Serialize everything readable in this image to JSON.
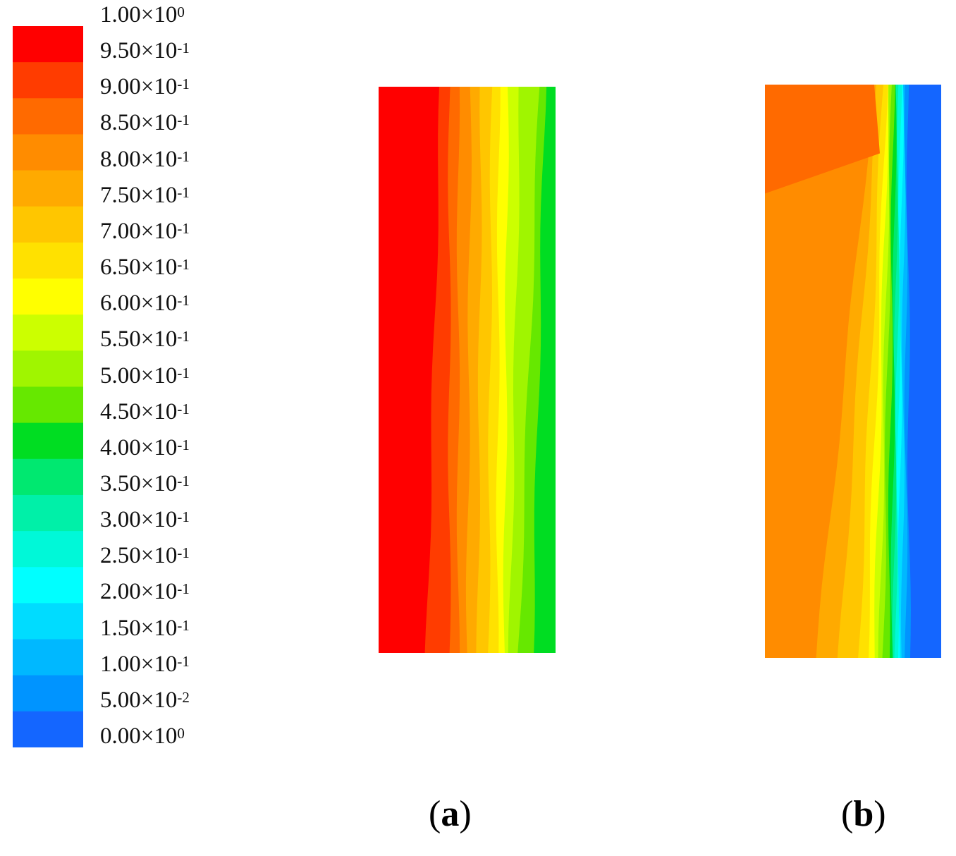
{
  "chart_data": {
    "type": "heatmap",
    "colorbar": {
      "levels": [
        {
          "value": 1.0,
          "label": "1.00×10",
          "exp": "0",
          "color": "#ff0000"
        },
        {
          "value": 0.95,
          "label": "9.50×10",
          "exp": "-1",
          "color": "#ff3c00"
        },
        {
          "value": 0.9,
          "label": "9.00×10",
          "exp": "-1",
          "color": "#ff6a00"
        },
        {
          "value": 0.85,
          "label": "8.50×10",
          "exp": "-1",
          "color": "#ff8c00"
        },
        {
          "value": 0.8,
          "label": "8.00×10",
          "exp": "-1",
          "color": "#ffaa00"
        },
        {
          "value": 0.75,
          "label": "7.50×10",
          "exp": "-1",
          "color": "#ffc600"
        },
        {
          "value": 0.7,
          "label": "7.00×10",
          "exp": "-1",
          "color": "#ffe100"
        },
        {
          "value": 0.65,
          "label": "6.50×10",
          "exp": "-1",
          "color": "#ffff00"
        },
        {
          "value": 0.6,
          "label": "6.00×10",
          "exp": "-1",
          "color": "#ccff00"
        },
        {
          "value": 0.55,
          "label": "5.50×10",
          "exp": "-1",
          "color": "#a0f500"
        },
        {
          "value": 0.5,
          "label": "5.00×10",
          "exp": "-1",
          "color": "#66e800"
        },
        {
          "value": 0.45,
          "label": "4.50×10",
          "exp": "-1",
          "color": "#00dd22"
        },
        {
          "value": 0.4,
          "label": "4.00×10",
          "exp": "-1",
          "color": "#00e870"
        },
        {
          "value": 0.35,
          "label": "3.50×10",
          "exp": "-1",
          "color": "#00f0a8"
        },
        {
          "value": 0.3,
          "label": "3.00×10",
          "exp": "-1",
          "color": "#00f8d8"
        },
        {
          "value": 0.25,
          "label": "2.50×10",
          "exp": "-1",
          "color": "#00ffff"
        },
        {
          "value": 0.2,
          "label": "2.00×10",
          "exp": "-1",
          "color": "#00dcff"
        },
        {
          "value": 0.15,
          "label": "1.50×10",
          "exp": "-1",
          "color": "#00b8ff"
        },
        {
          "value": 0.1,
          "label": "1.00×10",
          "exp": "-1",
          "color": "#0094ff"
        },
        {
          "value": 0.05,
          "label": "5.00×10",
          "exp": "-2",
          "color": "#1466ff"
        },
        {
          "value": 0.0,
          "label": "0.00×10",
          "exp": "0",
          "color": "#0000ff"
        }
      ]
    },
    "panels": [
      {
        "caption": "a",
        "bands": [
          {
            "level": 0.975,
            "top_fraction": 0.35,
            "bottom_fraction": 0.27
          },
          {
            "level": 0.925,
            "top_fraction": 0.4,
            "bottom_fraction": 0.4
          },
          {
            "level": 0.875,
            "top_fraction": 0.45,
            "bottom_fraction": 0.45
          },
          {
            "level": 0.825,
            "top_fraction": 0.52,
            "bottom_fraction": 0.5
          },
          {
            "level": 0.775,
            "top_fraction": 0.58,
            "bottom_fraction": 0.56
          },
          {
            "level": 0.725,
            "top_fraction": 0.64,
            "bottom_fraction": 0.62
          },
          {
            "level": 0.675,
            "top_fraction": 0.68,
            "bottom_fraction": 0.67
          },
          {
            "level": 0.625,
            "top_fraction": 0.73,
            "bottom_fraction": 0.71
          },
          {
            "level": 0.575,
            "top_fraction": 0.8,
            "bottom_fraction": 0.74
          },
          {
            "level": 0.525,
            "top_fraction": 0.91,
            "bottom_fraction": 0.79
          },
          {
            "level": 0.475,
            "top_fraction": 0.94,
            "bottom_fraction": 0.87
          },
          {
            "level": 0.425,
            "top_fraction": 1.0,
            "bottom_fraction": 1.0
          }
        ]
      },
      {
        "caption": "b",
        "bands": [
          {
            "level": 0.875,
            "top_fraction": 0.62,
            "bottom_fraction": 0.0,
            "mid_fraction": 0.6
          },
          {
            "level": 0.825,
            "top_fraction": 0.62,
            "bottom_fraction": 0.29
          },
          {
            "level": 0.775,
            "top_fraction": 0.64,
            "bottom_fraction": 0.42
          },
          {
            "level": 0.725,
            "top_fraction": 0.67,
            "bottom_fraction": 0.53
          },
          {
            "level": 0.675,
            "top_fraction": 0.69,
            "bottom_fraction": 0.58
          },
          {
            "level": 0.625,
            "top_fraction": 0.7,
            "bottom_fraction": 0.62
          },
          {
            "level": 0.575,
            "top_fraction": 0.71,
            "bottom_fraction": 0.65
          },
          {
            "level": 0.525,
            "top_fraction": 0.72,
            "bottom_fraction": 0.67
          },
          {
            "level": 0.475,
            "top_fraction": 0.73,
            "bottom_fraction": 0.7
          },
          {
            "level": 0.425,
            "top_fraction": 0.74,
            "bottom_fraction": 0.72
          },
          {
            "level": 0.375,
            "top_fraction": 0.75,
            "bottom_fraction": 0.73
          },
          {
            "level": 0.325,
            "top_fraction": 0.76,
            "bottom_fraction": 0.74
          },
          {
            "level": 0.275,
            "top_fraction": 0.77,
            "bottom_fraction": 0.75
          },
          {
            "level": 0.225,
            "top_fraction": 0.78,
            "bottom_fraction": 0.76
          },
          {
            "level": 0.175,
            "top_fraction": 0.79,
            "bottom_fraction": 0.78
          },
          {
            "level": 0.125,
            "top_fraction": 0.8,
            "bottom_fraction": 0.8
          },
          {
            "level": 0.075,
            "top_fraction": 0.81,
            "bottom_fraction": 0.82
          },
          {
            "level": 0.025,
            "top_fraction": 1.0,
            "bottom_fraction": 1.0
          }
        ]
      }
    ]
  },
  "captions": {
    "a_open": "(",
    "a_letter": "a",
    "a_close": ")",
    "b_open": "(",
    "b_letter": "b",
    "b_close": ")"
  }
}
